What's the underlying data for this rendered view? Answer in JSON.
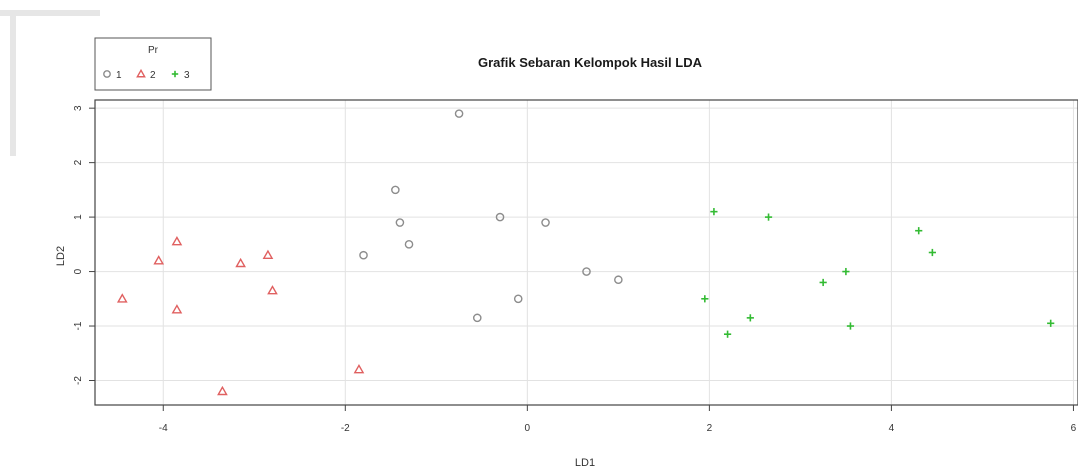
{
  "chart_data": {
    "type": "scatter",
    "title": "Grafik Sebaran Kelompok Hasil LDA",
    "xlabel": "LD1",
    "ylabel": "LD2",
    "xlim": [
      -4.75,
      6.05
    ],
    "ylim": [
      -2.45,
      3.15
    ],
    "x_ticks": [
      -4,
      -2,
      0,
      2,
      4,
      6
    ],
    "y_ticks": [
      -2,
      -1,
      0,
      1,
      2,
      3
    ],
    "grid": true,
    "legend": {
      "title": "Pr",
      "placement": "top-left",
      "entries": [
        {
          "label": "1",
          "marker": "circle",
          "color": "#8c8c8c"
        },
        {
          "label": "2",
          "marker": "triangle",
          "color": "#e06060"
        },
        {
          "label": "3",
          "marker": "plus",
          "color": "#33bb33"
        }
      ]
    },
    "series": [
      {
        "name": "1",
        "marker": "circle",
        "color": "#8c8c8c",
        "points": [
          [
            -0.75,
            2.9
          ],
          [
            -1.45,
            1.5
          ],
          [
            -1.4,
            0.9
          ],
          [
            -0.3,
            1.0
          ],
          [
            0.2,
            0.9
          ],
          [
            -1.3,
            0.5
          ],
          [
            -1.8,
            0.3
          ],
          [
            0.65,
            0.0
          ],
          [
            1.0,
            -0.15
          ],
          [
            -0.1,
            -0.5
          ],
          [
            -0.55,
            -0.85
          ]
        ]
      },
      {
        "name": "2",
        "marker": "triangle",
        "color": "#e06060",
        "points": [
          [
            -3.85,
            0.55
          ],
          [
            -4.05,
            0.2
          ],
          [
            -2.85,
            0.3
          ],
          [
            -3.15,
            0.15
          ],
          [
            -4.45,
            -0.5
          ],
          [
            -3.85,
            -0.7
          ],
          [
            -2.8,
            -0.35
          ],
          [
            -1.85,
            -1.8
          ],
          [
            -3.35,
            -2.2
          ]
        ]
      },
      {
        "name": "3",
        "marker": "plus",
        "color": "#33bb33",
        "points": [
          [
            2.05,
            1.1
          ],
          [
            2.65,
            1.0
          ],
          [
            4.3,
            0.75
          ],
          [
            4.45,
            0.35
          ],
          [
            3.5,
            0.0
          ],
          [
            3.25,
            -0.2
          ],
          [
            1.95,
            -0.5
          ],
          [
            2.45,
            -0.85
          ],
          [
            2.2,
            -1.15
          ],
          [
            3.55,
            -1.0
          ],
          [
            5.75,
            -0.95
          ]
        ]
      }
    ]
  }
}
